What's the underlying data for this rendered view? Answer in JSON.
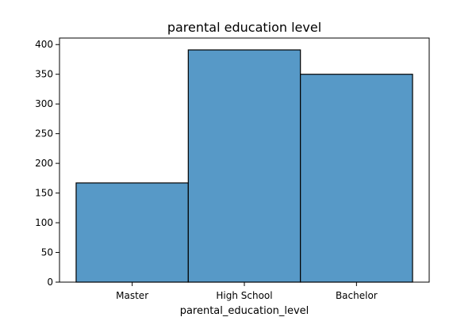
{
  "chart_data": {
    "type": "bar",
    "title": "parental education level",
    "xlabel": "parental_education_level",
    "ylabel": "",
    "categories": [
      "Master",
      "High School",
      "Bachelor"
    ],
    "values": [
      167,
      391,
      350
    ],
    "ylim": [
      0,
      411
    ],
    "yticks": [
      0,
      50,
      100,
      150,
      200,
      250,
      300,
      350,
      400
    ],
    "grid": false,
    "legend": "none",
    "bar_color": "#5799c7",
    "edge_color": "#000000"
  }
}
